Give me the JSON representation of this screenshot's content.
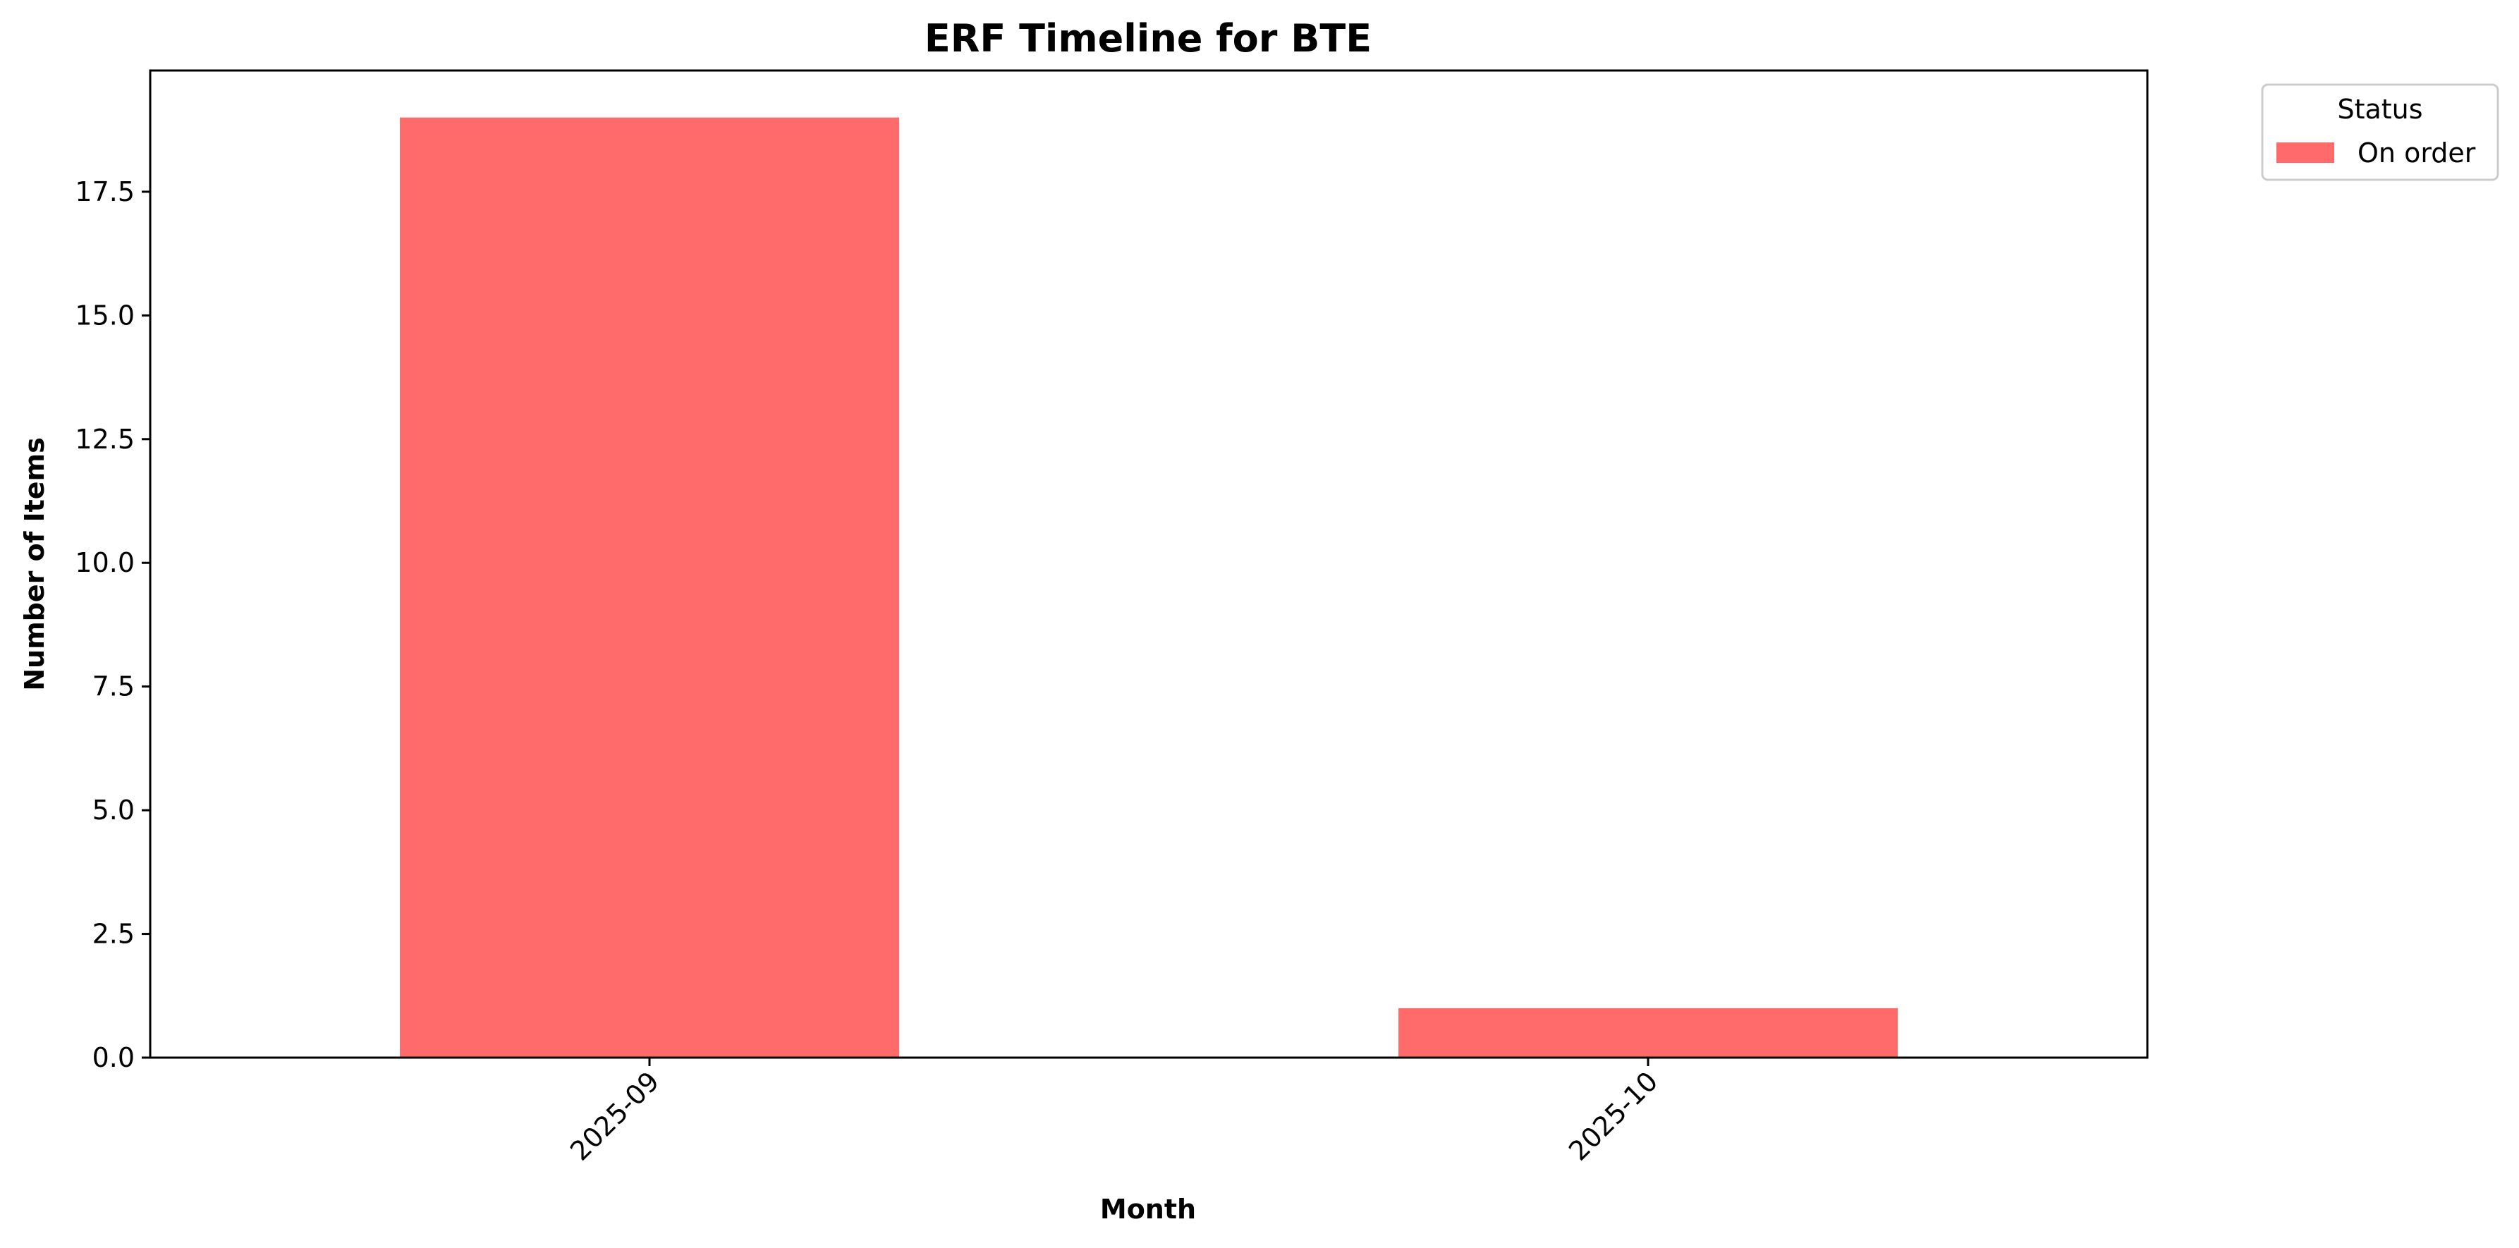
{
  "chart_data": {
    "type": "bar",
    "title": "ERF Timeline for BTE",
    "xlabel": "Month",
    "ylabel": "Number of Items",
    "categories": [
      "2025-09",
      "2025-10"
    ],
    "series": [
      {
        "name": "On order",
        "values": [
          19,
          1
        ],
        "color": "#ff6b6b"
      }
    ],
    "ylim": [
      0,
      19.95
    ],
    "yticks": [
      0.0,
      2.5,
      5.0,
      7.5,
      10.0,
      12.5,
      15.0,
      17.5
    ],
    "ytick_labels": [
      "0.0",
      "2.5",
      "5.0",
      "7.5",
      "10.0",
      "12.5",
      "15.0",
      "17.5"
    ],
    "xtick_rotation": "45 degrees",
    "grid": false,
    "legend": {
      "title": "Status",
      "placement": "outside top-right"
    }
  }
}
